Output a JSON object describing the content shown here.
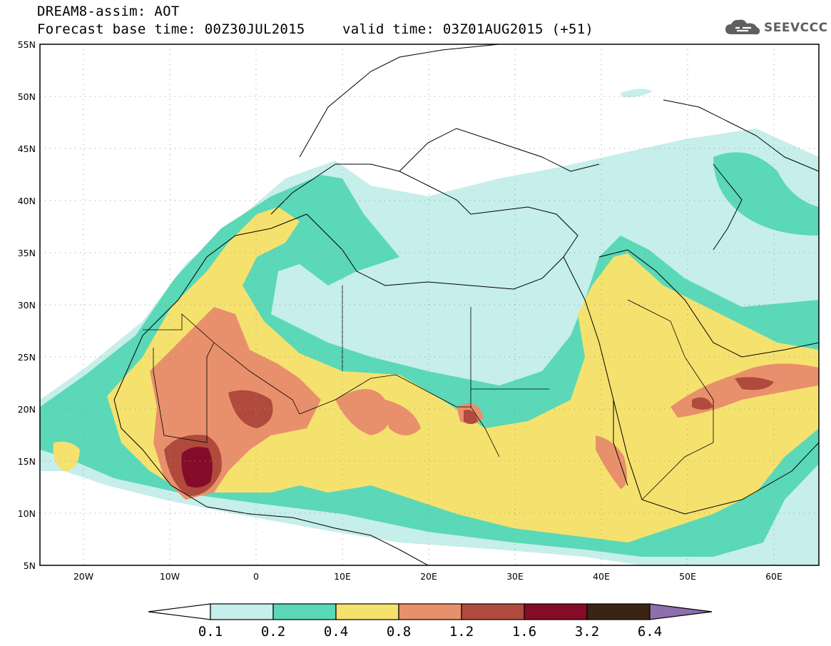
{
  "header": {
    "title": "DREAM8-assim: AOT",
    "base_time": "Forecast base time: 00Z30JUL2015",
    "valid_time": "valid time: 03Z01AUG2015 (+51)",
    "logo_text": "SEEVCCC",
    "logo_icon": "cloud-icon"
  },
  "axes": {
    "lat_labels": [
      "55N",
      "50N",
      "45N",
      "40N",
      "35N",
      "30N",
      "25N",
      "20N",
      "15N",
      "10N",
      "5N"
    ],
    "lon_labels": [
      "20W",
      "10W",
      "0",
      "10E",
      "20E",
      "30E",
      "40E",
      "50E",
      "60E"
    ],
    "lat_range": [
      5,
      55
    ],
    "lon_range": [
      -25,
      65
    ]
  },
  "colorbar": {
    "labels": [
      "0.1",
      "0.2",
      "0.4",
      "0.8",
      "1.2",
      "1.6",
      "3.2",
      "6.4"
    ],
    "colors": [
      "#ffffff",
      "#c6eeea",
      "#5ad8b8",
      "#f5e26e",
      "#e8906c",
      "#b04a3c",
      "#850c28",
      "#3a2414",
      "#8e6fae"
    ]
  }
}
